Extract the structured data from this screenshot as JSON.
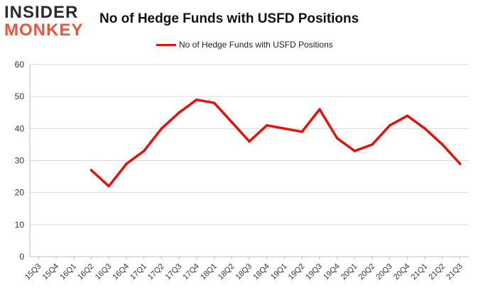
{
  "logo": {
    "line1": "INSIDER",
    "line2": "MONKEY"
  },
  "chart_data": {
    "type": "line",
    "title": "No of Hedge Funds with USFD Positions",
    "xlabel": "",
    "ylabel": "",
    "categories": [
      "15Q3",
      "15Q4",
      "16Q1",
      "16Q2",
      "16Q3",
      "16Q4",
      "17Q1",
      "17Q2",
      "17Q3",
      "17Q4",
      "18Q1",
      "18Q2",
      "18Q3",
      "18Q4",
      "19Q1",
      "19Q2",
      "19Q3",
      "19Q4",
      "20Q1",
      "20Q2",
      "20Q3",
      "20Q4",
      "21Q1",
      "21Q2",
      "21Q3"
    ],
    "series": [
      {
        "name": "No of Hedge Funds with USFD Positions",
        "color": "#e3120b",
        "values": [
          null,
          null,
          null,
          27,
          22,
          29,
          33,
          40,
          45,
          49,
          48,
          42,
          36,
          41,
          40,
          39,
          46,
          37,
          33,
          35,
          41,
          44,
          40,
          35,
          29
        ]
      }
    ],
    "ylim": [
      0,
      60
    ],
    "yticks": [
      0,
      10,
      20,
      30,
      40,
      50,
      60
    ],
    "grid": true,
    "legend_position": "top"
  }
}
